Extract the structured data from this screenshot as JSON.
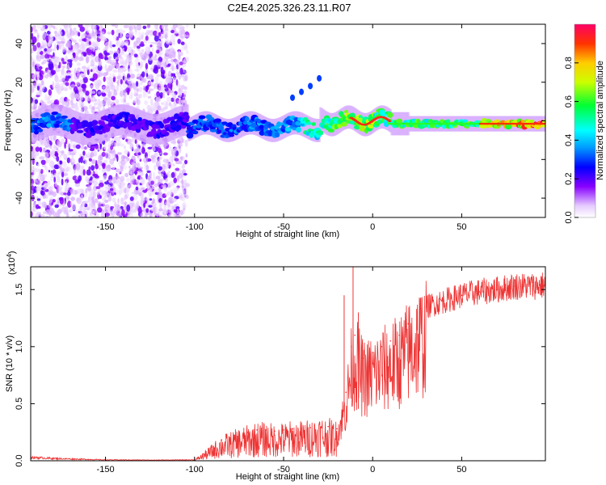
{
  "title": "C2E4.2025.326.23.11.R07",
  "chart_data": [
    {
      "type": "heatmap",
      "name": "spectrogram",
      "xlabel": "Height of straight line (km)",
      "ylabel": "Frequency (Hz)",
      "xlim": [
        -192,
        97
      ],
      "ylim": [
        -50,
        50
      ],
      "xticks": [
        -150,
        -100,
        -50,
        0,
        50
      ],
      "yticks": [
        -40,
        -20,
        0,
        20,
        40
      ],
      "colorbar": {
        "label": "Normalized spectral amplitude",
        "range": [
          0,
          1
        ],
        "ticks": [
          "0.0",
          "0.2",
          "0.4",
          "0.6",
          "0.8"
        ],
        "tick_values": [
          0.0,
          0.2,
          0.4,
          0.6,
          0.8
        ]
      },
      "features": [
        {
          "name": "noise-scatter",
          "x_range": [
            -192,
            -104
          ],
          "y_range": [
            -50,
            50
          ],
          "amplitude": 0.1
        },
        {
          "name": "main-band",
          "x_range": [
            -192,
            97
          ],
          "center_freq_hz": 0,
          "amplitude_trend": "rises from about 0.3 near -100 km to about 0.9 above 0 km"
        },
        {
          "name": "upper-branch",
          "points": [
            [
              -45,
              12
            ],
            [
              -40,
              15
            ],
            [
              -35,
              18
            ],
            [
              -30,
              22
            ]
          ],
          "amplitude": 0.3
        }
      ]
    },
    {
      "type": "line",
      "name": "snr",
      "xlabel": "Height of straight line (km)",
      "ylabel": "SNR (10 * v/v)",
      "multiplier": "(x10",
      "multiplier_exp": "4",
      "multiplier_close": ")",
      "xlim": [
        -192,
        97
      ],
      "ylim": [
        0,
        17000
      ],
      "xticks": [
        -150,
        -100,
        -50,
        0,
        50
      ],
      "yticks": [
        "0.0",
        "0.5",
        "1.0",
        "1.5"
      ],
      "ytick_values": [
        0,
        5000,
        10000,
        15000
      ],
      "color": "#ee3333",
      "series": [
        {
          "name": "SNR",
          "x": [
            -192,
            -180,
            -150,
            -120,
            -100,
            -95,
            -90,
            -85,
            -80,
            -75,
            -70,
            -65,
            -60,
            -55,
            -50,
            -45,
            -40,
            -35,
            -30,
            -25,
            -20,
            -15,
            -12,
            -10,
            -5,
            0,
            5,
            10,
            15,
            20,
            25,
            30,
            40,
            50,
            60,
            70,
            80,
            90,
            97
          ],
          "values": [
            300,
            200,
            80,
            60,
            80,
            600,
            1200,
            1800,
            2000,
            2300,
            2500,
            2700,
            2700,
            2600,
            2700,
            2800,
            2800,
            2900,
            3200,
            3000,
            2800,
            6000,
            10000,
            11000,
            9000,
            9500,
            10000,
            10500,
            11000,
            12000,
            13000,
            13500,
            14000,
            14500,
            14800,
            15000,
            15300,
            15300,
            15400
          ]
        }
      ],
      "peaks": [
        {
          "x": -11,
          "value": 17000
        },
        {
          "x": -16,
          "value": 14500
        },
        {
          "x": -8,
          "value": 13000
        }
      ]
    }
  ]
}
